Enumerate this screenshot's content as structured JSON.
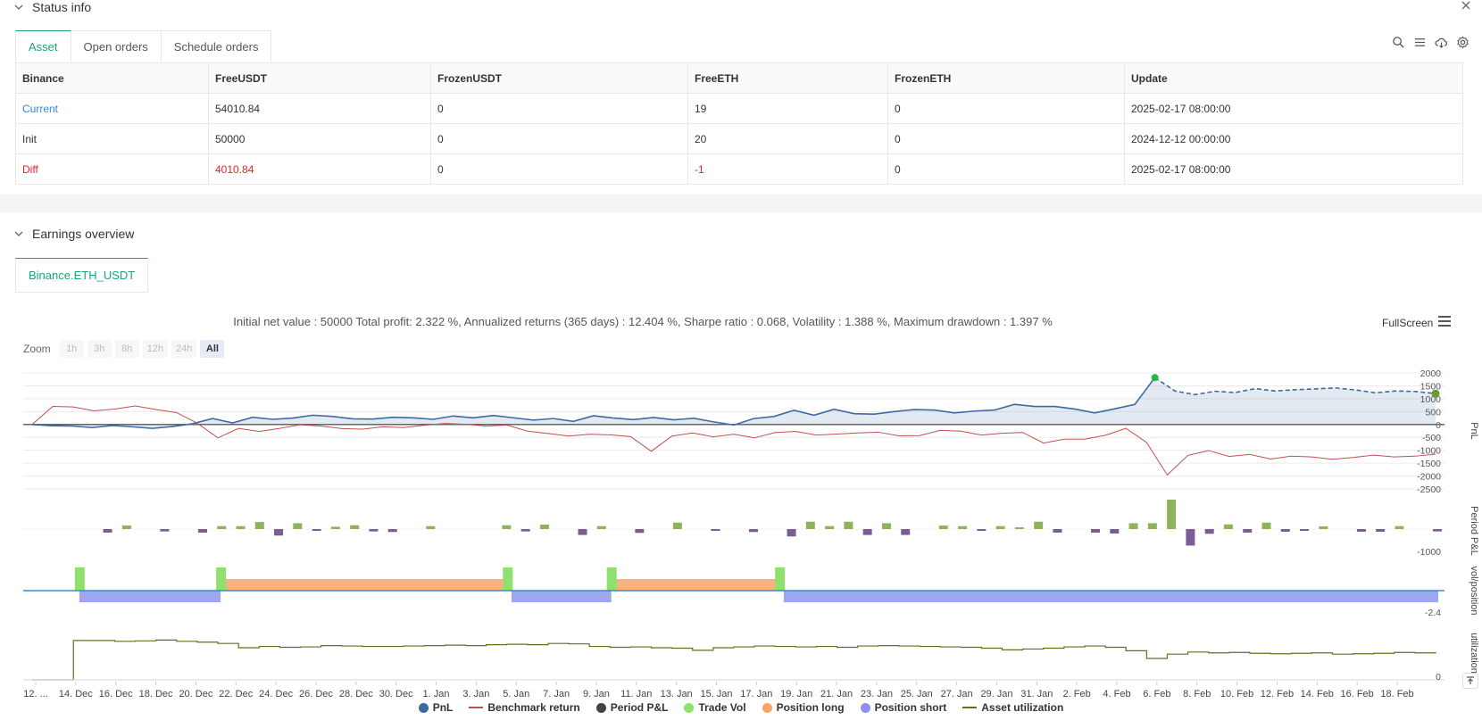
{
  "status": {
    "title": "Status info",
    "tabs": [
      "Asset",
      "Open orders",
      "Schedule orders"
    ],
    "table": {
      "headers": [
        "Binance",
        "FreeUSDT",
        "FrozenUSDT",
        "FreeETH",
        "FrozenETH",
        "Update"
      ],
      "rows": [
        [
          "Current",
          "54010.84",
          "0",
          "19",
          "0",
          "2025-02-17 08:00:00"
        ],
        [
          "Init",
          "50000",
          "0",
          "20",
          "0",
          "2024-12-12 00:00:00"
        ],
        [
          "Diff",
          "4010.84",
          "0",
          "-1",
          "0",
          "2025-02-17 08:00:00"
        ]
      ]
    }
  },
  "earnings": {
    "title": "Earnings overview",
    "tab": "Binance.ETH_USDT",
    "stats": "Initial net value : 50000 Total profit: 2.322 %, Annualized returns (365 days) : 12.404 %, Sharpe ratio : 0.068, Volatility : 1.388 %, Maximum drawdown : 1.397 %",
    "fullscreen": "FullScreen",
    "zoom_label": "Zoom",
    "zoom_buttons": [
      "1h",
      "3h",
      "8h",
      "12h",
      "24h",
      "All"
    ],
    "zoom_active": "All"
  },
  "colors": {
    "pnl": "#3d6aa3",
    "benchmark": "#c0504d",
    "period_pos": "#8fb35a",
    "period_neg": "#7b5c94",
    "trade_vol": "#90e070",
    "pos_long": "#f7b27f",
    "pos_short": "#9ea6ef",
    "utilization": "#6b6b1e"
  },
  "chart_data": {
    "type": "line",
    "x_ticks": [
      "12. ...",
      "14. Dec",
      "16. Dec",
      "18. Dec",
      "20. Dec",
      "22. Dec",
      "24. Dec",
      "26. Dec",
      "28. Dec",
      "30. Dec",
      "1. Jan",
      "3. Jan",
      "5. Jan",
      "7. Jan",
      "9. Jan",
      "11. Jan",
      "13. Jan",
      "15. Jan",
      "17. Jan",
      "19. Jan",
      "21. Jan",
      "23. Jan",
      "25. Jan",
      "27. Jan",
      "29. Jan",
      "31. Jan",
      "2. Feb",
      "4. Feb",
      "6. Feb",
      "8. Feb",
      "10. Feb",
      "12. Feb",
      "14. Feb",
      "16. Feb",
      "18. Feb"
    ],
    "pnl_axis": {
      "ticks": [
        "2000",
        "1500",
        "1000",
        "500",
        "0",
        "-500",
        "-1000",
        "-1500",
        "-2000",
        "-2500"
      ],
      "ylim": [
        -2500,
        2000
      ],
      "label": "PnL"
    },
    "pnl": [
      0,
      -50,
      -60,
      -120,
      -40,
      -90,
      -150,
      -80,
      30,
      230,
      60,
      280,
      200,
      250,
      360,
      310,
      220,
      210,
      280,
      260,
      200,
      330,
      260,
      350,
      260,
      170,
      230,
      120,
      340,
      250,
      190,
      270,
      180,
      240,
      100,
      -20,
      230,
      310,
      550,
      360,
      590,
      420,
      400,
      500,
      580,
      560,
      450,
      520,
      560,
      780,
      700,
      700,
      600,
      450,
      610,
      780,
      1820,
      1300,
      1160,
      1290,
      1240,
      1390,
      1300,
      1350,
      1380,
      1420,
      1340,
      1230,
      1300,
      1280,
      1200
    ],
    "benchmark": [
      0,
      700,
      680,
      530,
      600,
      720,
      580,
      460,
      50,
      -520,
      -150,
      -270,
      -150,
      -10,
      -60,
      -160,
      -180,
      -90,
      -120,
      -30,
      40,
      10,
      -60,
      -20,
      -260,
      -350,
      -450,
      -380,
      -400,
      -470,
      -1040,
      -450,
      -330,
      -480,
      -380,
      -520,
      -310,
      -270,
      -410,
      -370,
      -330,
      -300,
      -440,
      -430,
      -230,
      -260,
      -410,
      -340,
      -310,
      -720,
      -570,
      -570,
      -420,
      -150,
      -700,
      -1960,
      -1200,
      -1010,
      -1240,
      -1160,
      -1340,
      -1230,
      -1260,
      -1350,
      -1280,
      -1190,
      -1260,
      -1230,
      -1150
    ],
    "period_axis": {
      "ticks": [
        "-1000"
      ],
      "label": "Period P&L"
    },
    "period_pnl": [
      0,
      0,
      -120,
      120,
      0,
      -80,
      0,
      -120,
      100,
      100,
      240,
      -220,
      200,
      -60,
      80,
      130,
      -80,
      -100,
      0,
      100,
      0,
      0,
      0,
      130,
      -80,
      150,
      0,
      -200,
      100,
      0,
      -130,
      0,
      220,
      0,
      -60,
      0,
      -100,
      0,
      -250,
      250,
      100,
      250,
      -200,
      200,
      -200,
      0,
      120,
      100,
      -20,
      100,
      60,
      250,
      -120,
      0,
      -120,
      -150,
      200,
      200,
      1000,
      -560,
      -160,
      160,
      -120,
      220,
      -90,
      -20,
      90,
      0,
      -90,
      -90,
      100,
      0,
      -80
    ],
    "position_axis": {
      "ticks": [
        "-2.4"
      ],
      "label": "vol/position"
    },
    "position_segments": [
      {
        "type": "short",
        "start": 2.7,
        "end": 9.5
      },
      {
        "type": "long",
        "start": 9.7,
        "end": 23.3
      },
      {
        "type": "short",
        "start": 23.5,
        "end": 28.3
      },
      {
        "type": "long",
        "start": 28.5,
        "end": 36.4
      },
      {
        "type": "short",
        "start": 36.6,
        "end": 68.1
      }
    ],
    "trade_vol": [
      2.7,
      9.5,
      23.3,
      28.3,
      36.4
    ],
    "utilization_axis": {
      "ticks": [
        "0"
      ],
      "label": "utilization"
    },
    "utilization": [
      0,
      0,
      0.92,
      0.92,
      0.9,
      0.91,
      0.93,
      0.9,
      0.88,
      0.85,
      0.75,
      0.78,
      0.76,
      0.77,
      0.8,
      0.79,
      0.78,
      0.78,
      0.79,
      0.8,
      0.81,
      0.8,
      0.82,
      0.83,
      0.82,
      0.85,
      0.84,
      0.78,
      0.76,
      0.77,
      0.75,
      0.74,
      0.69,
      0.75,
      0.77,
      0.79,
      0.78,
      0.77,
      0.78,
      0.76,
      0.79,
      0.8,
      0.79,
      0.78,
      0.77,
      0.76,
      0.74,
      0.7,
      0.72,
      0.74,
      0.77,
      0.79,
      0.76,
      0.68,
      0.5,
      0.6,
      0.65,
      0.63,
      0.64,
      0.62,
      0.61,
      0.62,
      0.63,
      0.6,
      0.61,
      0.62,
      0.64,
      0.63,
      0.65
    ],
    "legend": [
      "PnL",
      "Benchmark return",
      "Period P&L",
      "Trade Vol",
      "Position long",
      "Position short",
      "Asset utilization"
    ]
  }
}
